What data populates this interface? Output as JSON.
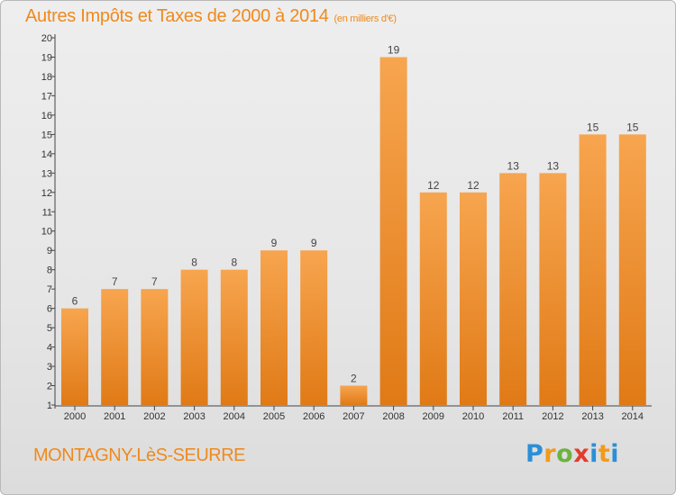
{
  "header": {
    "title": "Autres Impôts et Taxes de 2000 à 2014",
    "unit": "(en milliers d'€)"
  },
  "footer": {
    "commune": "MONTAGNY-LèS-SEURRE",
    "logo_text": "Proxiti"
  },
  "colors": {
    "bar_light": "#f7a54f",
    "bar_dark": "#e07a16",
    "title": "#ef8a1d",
    "axis": "#444444"
  },
  "chart_data": {
    "type": "bar",
    "title": "Autres Impôts et Taxes de 2000 à 2014",
    "subtitle": "(en milliers d'€)",
    "xlabel": "",
    "ylabel": "",
    "categories": [
      "2000",
      "2001",
      "2002",
      "2003",
      "2004",
      "2005",
      "2006",
      "2007",
      "2008",
      "2009",
      "2010",
      "2011",
      "2012",
      "2013",
      "2014"
    ],
    "values": [
      6,
      7,
      7,
      8,
      8,
      9,
      9,
      2,
      19,
      12,
      12,
      13,
      13,
      15,
      15
    ],
    "ylim": [
      1,
      20
    ],
    "yticks": [
      1,
      2,
      3,
      4,
      5,
      6,
      7,
      8,
      9,
      10,
      11,
      12,
      13,
      14,
      15,
      16,
      17,
      18,
      19,
      20
    ],
    "grid": false,
    "data_labels": true,
    "legend": "none"
  }
}
